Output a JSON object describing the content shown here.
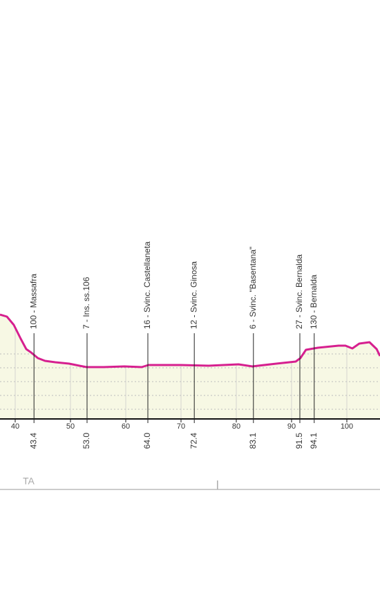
{
  "chart_data": {
    "type": "line",
    "x": [
      37.25,
      38.5,
      39.75,
      41,
      42,
      42.9,
      44.1,
      45.4,
      47.25,
      49.75,
      51.6,
      52.9,
      56,
      59.75,
      62.9,
      64.1,
      70,
      75,
      80.4,
      82.9,
      87.25,
      90.75,
      91.6,
      92.6,
      94.75,
      98.5,
      99.75,
      101,
      102.25,
      104.1,
      105.4,
      106
    ],
    "values": [
      385,
      370,
      310,
      210,
      135,
      110,
      70,
      50,
      40,
      30,
      15,
      5,
      5,
      10,
      5,
      20,
      20,
      15,
      25,
      10,
      30,
      45,
      70,
      130,
      145,
      160,
      160,
      140,
      175,
      185,
      135,
      85
    ],
    "color": "#d61f8f",
    "fill": "#f7f8e4",
    "xlim": [
      37.25,
      106
    ],
    "ylim": [
      -370,
      500
    ],
    "xticks": [
      40,
      50,
      60,
      70,
      80,
      90,
      100
    ],
    "waypoints": [
      {
        "km": 43.4,
        "label": "100 - Massafra"
      },
      {
        "km": {
          "value": 53,
          "label": "53.0"
        },
        "label": "7 - Ins. ss.106"
      },
      {
        "km": {
          "value": 64,
          "label": "64.0"
        },
        "label": "16 - Svinc. Castellaneta"
      },
      {
        "km": 72.4,
        "label": "12 - Svinc. Ginosa"
      },
      {
        "km": 83.1,
        "label": "6 - Svinc. \"Basentana\""
      },
      {
        "km": 91.5,
        "label": "27 - Svinc. Bernalda"
      },
      {
        "km": 94.1,
        "label": "130 - Bernalda"
      }
    ],
    "region_label": "TA",
    "province_border_km": 76.6
  }
}
